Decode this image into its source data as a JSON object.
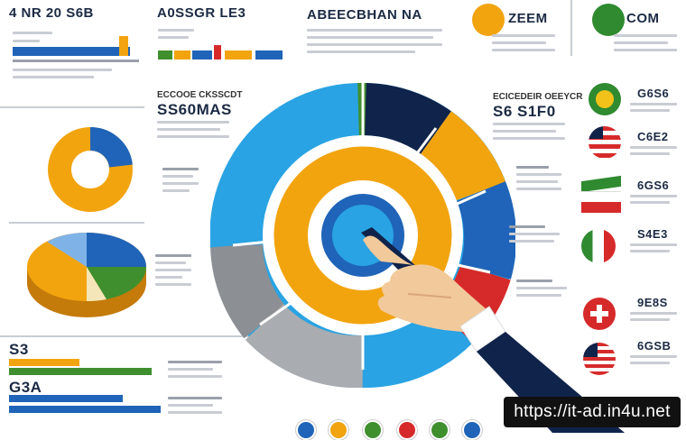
{
  "headings": {
    "top_left": "4 NR 20 S6B",
    "top_left2": "A0SSGR LE3",
    "top_center": "ABEECBHAN NA",
    "top_right1": "ZEEM",
    "top_right2": "COM",
    "mid_left": "SS60MAS",
    "mid_left_small": "ECCOOE CKSSCDT",
    "mid_right": "S6 S1F0",
    "mid_right_small": "ECICEDEIR OEEYCR",
    "bottom_left": "S3",
    "bottom_left2": "G3A",
    "flag1": "G6S6",
    "flag2": "C6E2",
    "flag3": "6GS6",
    "flag4": "S4E3",
    "flag5": "9E8S",
    "flag6": "6GSB"
  },
  "colors": {
    "blue": "#1f64b8",
    "orange": "#f2a40f",
    "navy": "#10234a",
    "green": "#3f8f2e",
    "gray": "#8c8f94",
    "lightblue": "#29a3e3",
    "red": "#d62a2a"
  },
  "icons": [
    "hand-pointer-icon",
    "flag-icon",
    "logo-icon"
  ],
  "watermark": "https://it-ad.in4u.net"
}
